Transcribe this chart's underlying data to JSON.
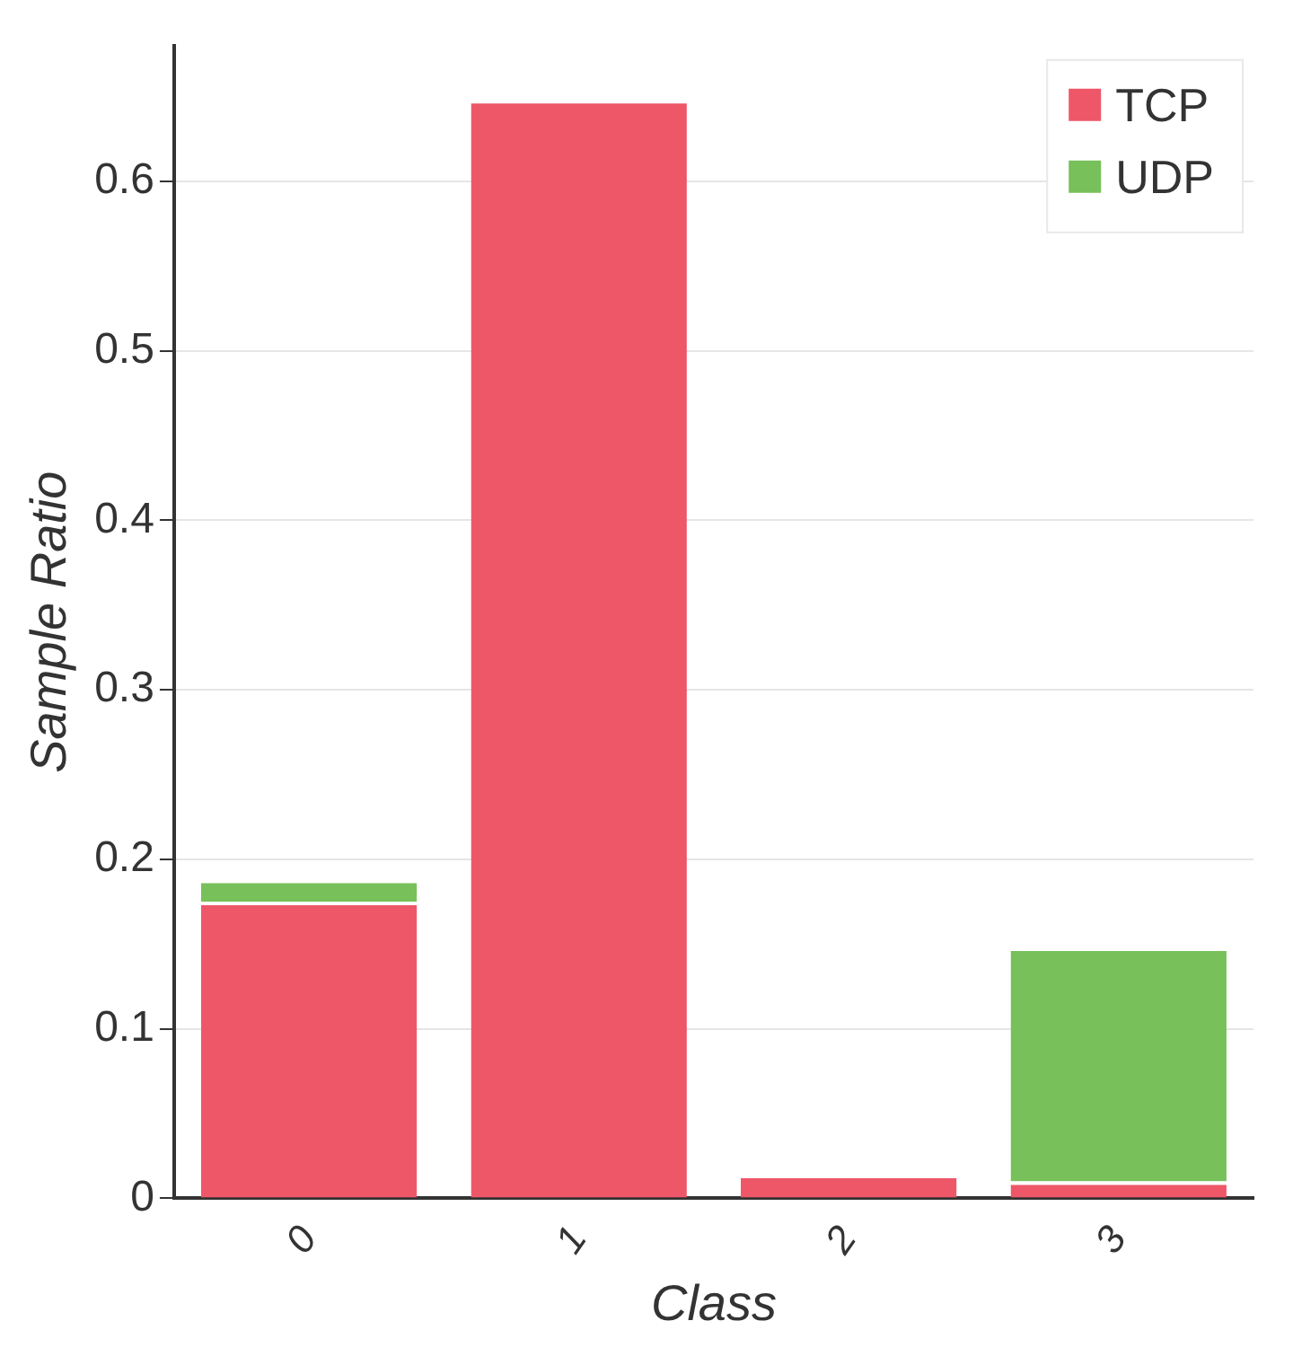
{
  "chart_data": {
    "type": "bar",
    "stacked": true,
    "xlabel": "Class",
    "ylabel": "Sample Ratio",
    "categories": [
      "0",
      "1",
      "2",
      "3"
    ],
    "series": [
      {
        "name": "TCP",
        "color": "#ee5768",
        "values": [
          0.175,
          0.648,
          0.014,
          0.01
        ]
      },
      {
        "name": "UDP",
        "color": "#77c05a",
        "values": [
          0.013,
          0,
          0,
          0.138
        ]
      }
    ],
    "ylim": [
      0,
      0.68
    ],
    "yticks": [
      0,
      0.1,
      0.2,
      0.3,
      0.4,
      0.5,
      0.6
    ],
    "grid": "y",
    "legend": "top right"
  }
}
